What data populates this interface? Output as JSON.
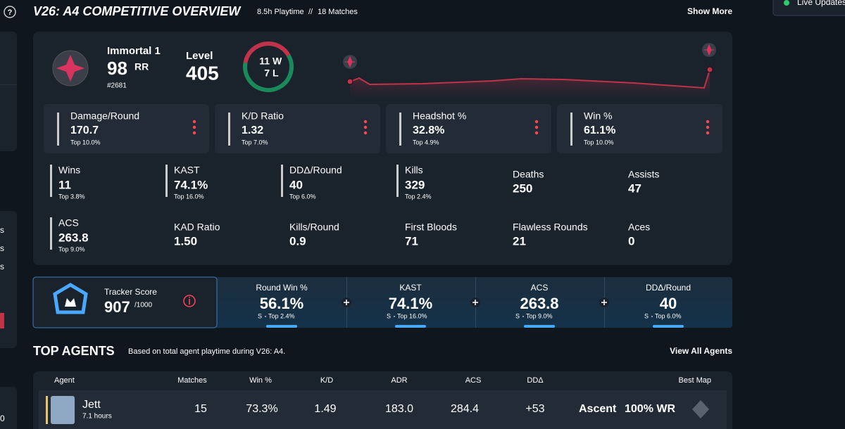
{
  "sidebar": {
    "items": [
      "s",
      "s",
      "s",
      "0"
    ]
  },
  "header": {
    "help": "?",
    "title": "V26: A4 COMPETITIVE OVERVIEW",
    "playtime": "8.5h Playtime",
    "separator": "//",
    "matches": "18 Matches",
    "show_more": "Show More",
    "live": "Live Updates"
  },
  "rank": {
    "name": "Immortal 1",
    "rr": "98",
    "rr_unit": "RR",
    "leaderboard": "#2681",
    "level_label": "Level",
    "level": "405",
    "wins": 11,
    "wins_unit": "W",
    "losses": 7,
    "losses_unit": "L"
  },
  "main_stats": [
    {
      "label": "Damage/Round",
      "value": "170.7",
      "top": "Top 10.0%"
    },
    {
      "label": "K/D Ratio",
      "value": "1.32",
      "top": "Top 7.0%"
    },
    {
      "label": "Headshot %",
      "value": "32.8%",
      "top": "Top 4.9%",
      "top_color": "#e8c36a"
    },
    {
      "label": "Win %",
      "value": "61.1%",
      "top": "Top 10.0%"
    }
  ],
  "stats": [
    {
      "label": "Wins",
      "value": "11",
      "top": "Top 3.8%",
      "top_color": "#e8c36a"
    },
    {
      "label": "KAST",
      "value": "74.1%",
      "top": "Top 16.0%"
    },
    {
      "label": "DDΔ/Round",
      "value": "40",
      "top": "Top 6.0%"
    },
    {
      "label": "Kills",
      "value": "329",
      "top": "Top 2.4%",
      "top_color": "#e8c36a"
    },
    {
      "label": "Deaths",
      "value": "250"
    },
    {
      "label": "Assists",
      "value": "47"
    },
    {
      "label": "ACS",
      "value": "263.8",
      "top": "Top 9.0%"
    },
    {
      "label": "KAD Ratio",
      "value": "1.50"
    },
    {
      "label": "Kills/Round",
      "value": "0.9"
    },
    {
      "label": "First Bloods",
      "value": "71"
    },
    {
      "label": "Flawless Rounds",
      "value": "21"
    },
    {
      "label": "Aces",
      "value": "0"
    }
  ],
  "tracker": {
    "label": "Tracker Score",
    "score": "907",
    "max": "/1000",
    "items": [
      {
        "label": "Round Win %",
        "value": "56.1%",
        "grade": "S",
        "top": "Top 2.4%"
      },
      {
        "label": "KAST",
        "value": "74.1%",
        "grade": "S",
        "top": "Top 16.0%"
      },
      {
        "label": "ACS",
        "value": "263.8",
        "grade": "S",
        "top": "Top 9.0%"
      },
      {
        "label": "DDΔ/Round",
        "value": "40",
        "grade": "S",
        "top": "Top 6.0%"
      }
    ]
  },
  "top_agents": {
    "title": "TOP AGENTS",
    "subtitle": "Based on total agent playtime during V26: A4.",
    "view_all": "View All Agents",
    "columns": [
      "Agent",
      "Matches",
      "Win %",
      "K/D",
      "ADR",
      "ACS",
      "DDΔ",
      "Best Map"
    ],
    "rows": [
      {
        "agent": "Jett",
        "hours": "7.1 hours",
        "cells": [
          "15",
          "73.3%",
          "1.49",
          "183.0",
          "284.4",
          "+53"
        ],
        "map": "Ascent",
        "map_wr": "100% WR"
      }
    ]
  }
}
